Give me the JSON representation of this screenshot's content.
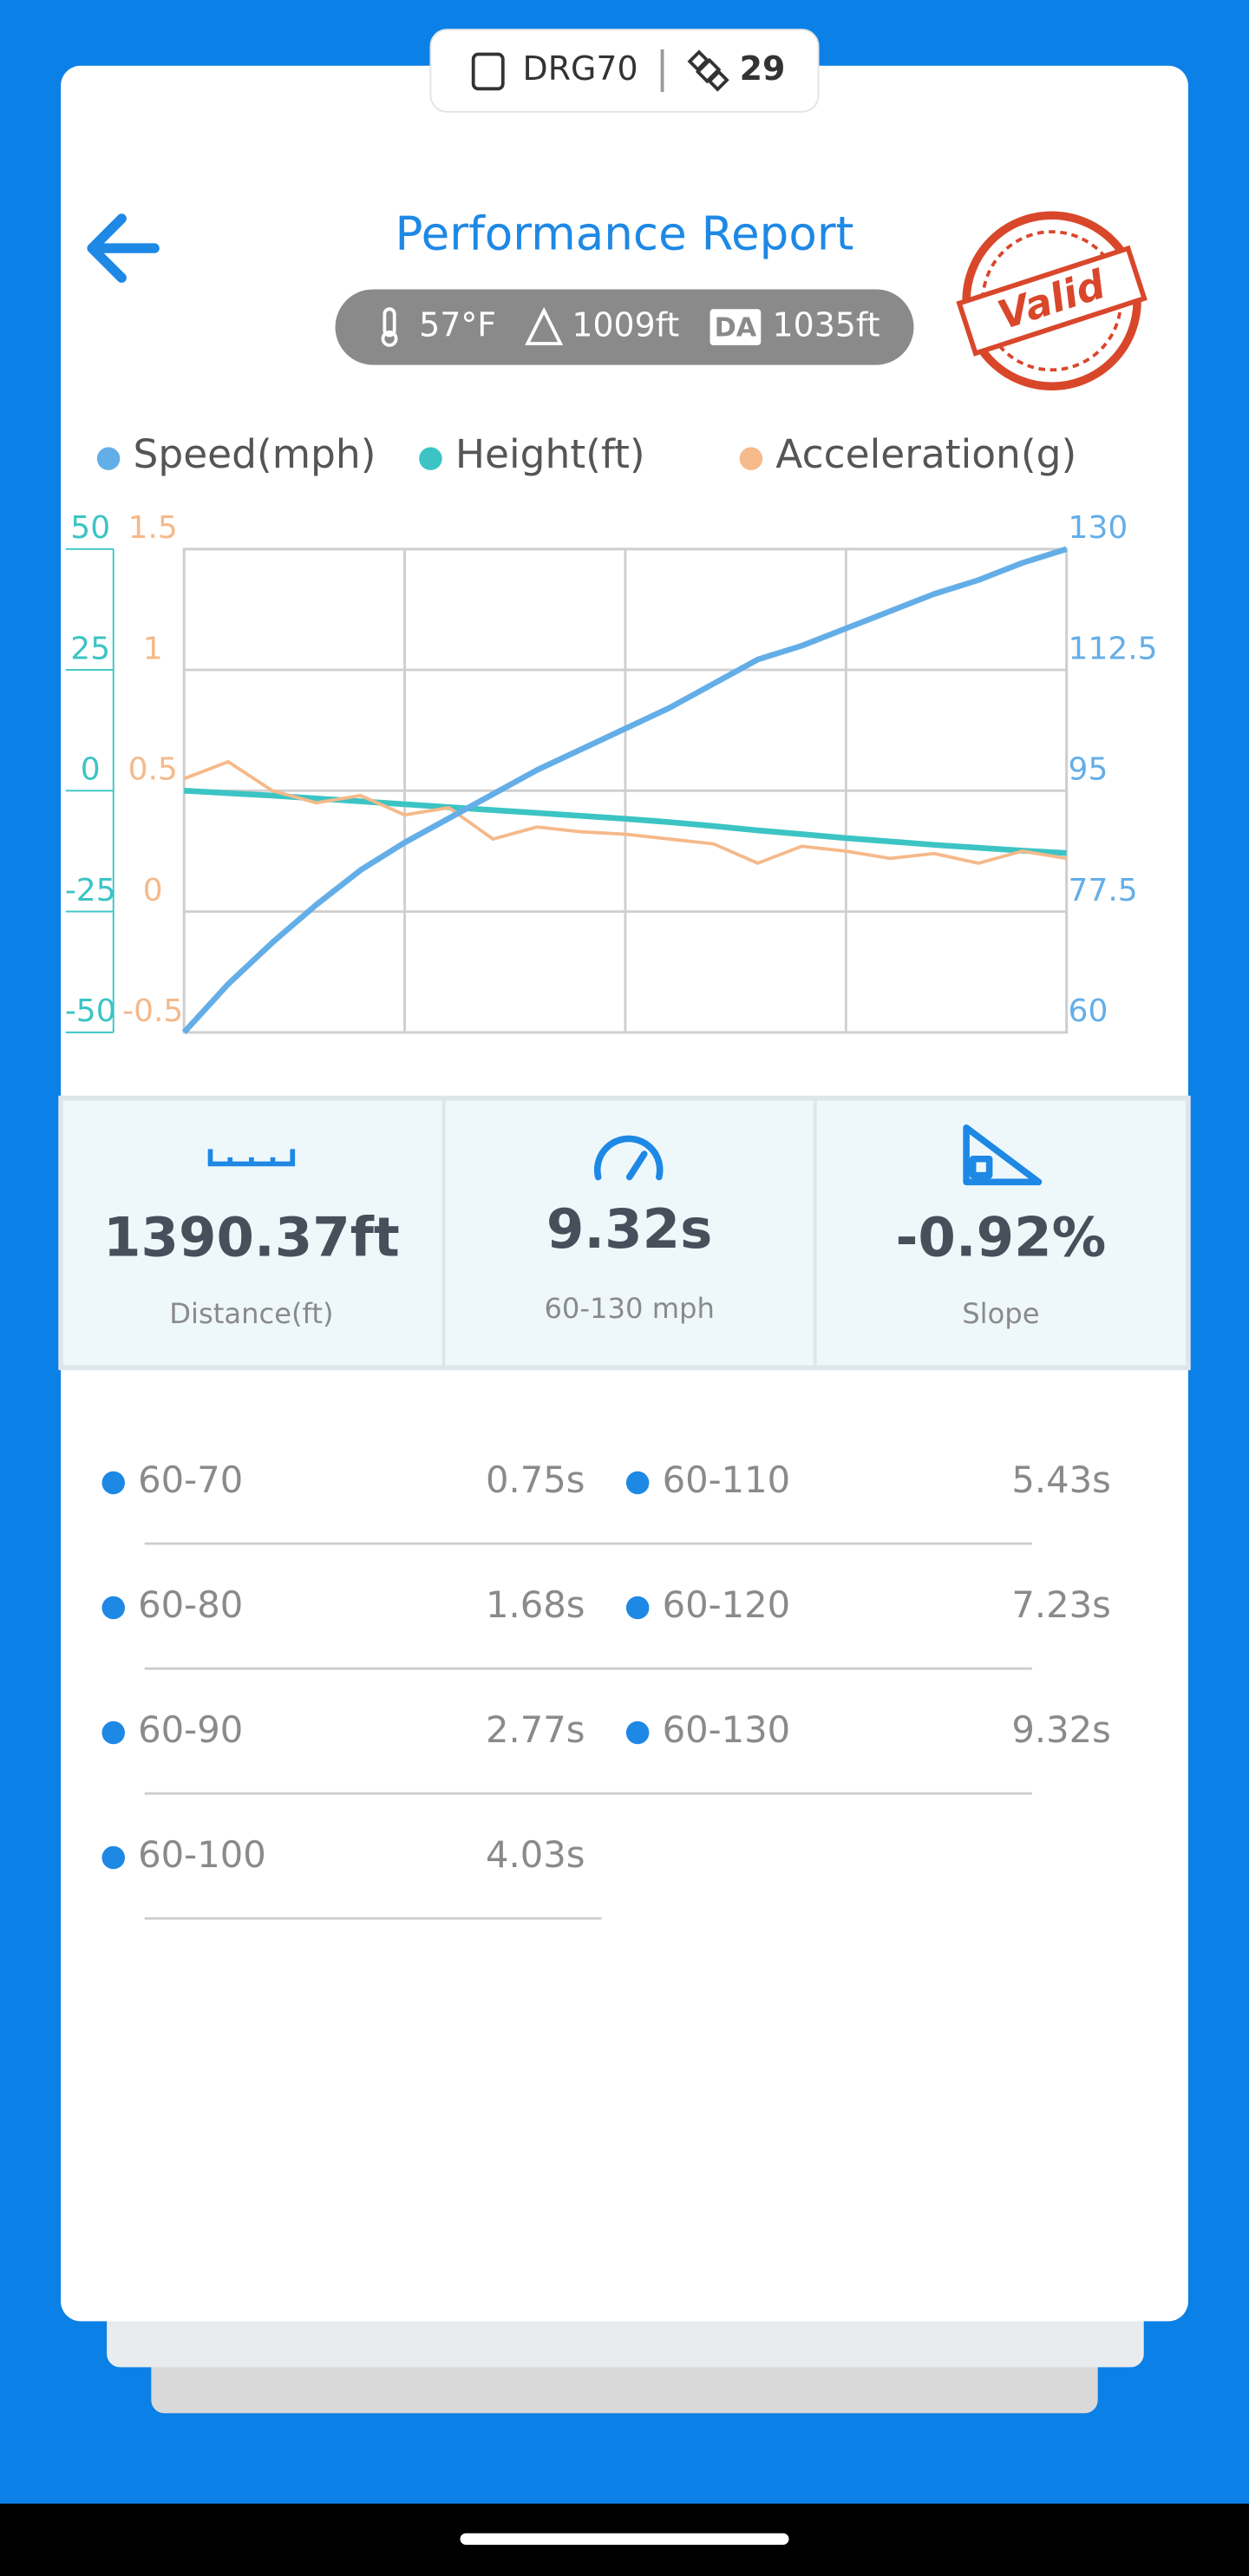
{
  "status_pill": {
    "device": "DRG70",
    "satellites": "29"
  },
  "header": {
    "title": "Performance Report",
    "stamp": "Valid"
  },
  "conditions": {
    "temperature": "57°F",
    "altitude": "1009ft",
    "da_label": "DA",
    "density_altitude": "1035ft"
  },
  "chart_data": {
    "type": "line",
    "series": [
      {
        "name": "Speed(mph)",
        "color": "#64aee8",
        "axis": "y3",
        "values": [
          60,
          67,
          73,
          78.5,
          83.5,
          87.5,
          91,
          94.5,
          98,
          101,
          104,
          107,
          110.5,
          114,
          116,
          118.5,
          121,
          123.5,
          125.5,
          128,
          130
        ]
      },
      {
        "name": "Height(ft)",
        "color": "#3cc4c4",
        "axis": "y",
        "values": [
          0,
          -0.5,
          -1,
          -1.6,
          -2.2,
          -2.8,
          -3.4,
          -4,
          -4.6,
          -5.2,
          -5.8,
          -6.5,
          -7.3,
          -8.2,
          -9,
          -9.8,
          -10.5,
          -11.2,
          -11.8,
          -12.4,
          -12.9
        ]
      },
      {
        "name": "Acceleration(g)",
        "color": "#f5b98a",
        "axis": "y2",
        "values": [
          0.55,
          0.62,
          0.5,
          0.45,
          0.48,
          0.4,
          0.43,
          0.3,
          0.35,
          0.33,
          0.32,
          0.3,
          0.28,
          0.2,
          0.27,
          0.25,
          0.22,
          0.24,
          0.2,
          0.25,
          0.22
        ]
      }
    ],
    "ylim": [
      -50,
      50
    ],
    "yticks": [
      -50,
      -25,
      0,
      25,
      50
    ],
    "y2lim": [
      -0.5,
      1.5
    ],
    "y2ticks": [
      -0.5,
      0,
      0.5,
      1,
      1.5
    ],
    "y3lim": [
      60,
      130
    ],
    "y3ticks": [
      60,
      77.5,
      95,
      112.5,
      130
    ],
    "grid": true
  },
  "stats": [
    {
      "value": "1390.37ft",
      "label": "Distance(ft)"
    },
    {
      "value": "9.32s",
      "label": "60-130 mph"
    },
    {
      "value": "-0.92%",
      "label": "Slope"
    }
  ],
  "splits": [
    {
      "label": "60-70",
      "time": "0.75s"
    },
    {
      "label": "60-80",
      "time": "1.68s"
    },
    {
      "label": "60-90",
      "time": "2.77s"
    },
    {
      "label": "60-100",
      "time": "4.03s"
    },
    {
      "label": "60-110",
      "time": "5.43s"
    },
    {
      "label": "60-120",
      "time": "7.23s"
    },
    {
      "label": "60-130",
      "time": "9.32s"
    }
  ]
}
